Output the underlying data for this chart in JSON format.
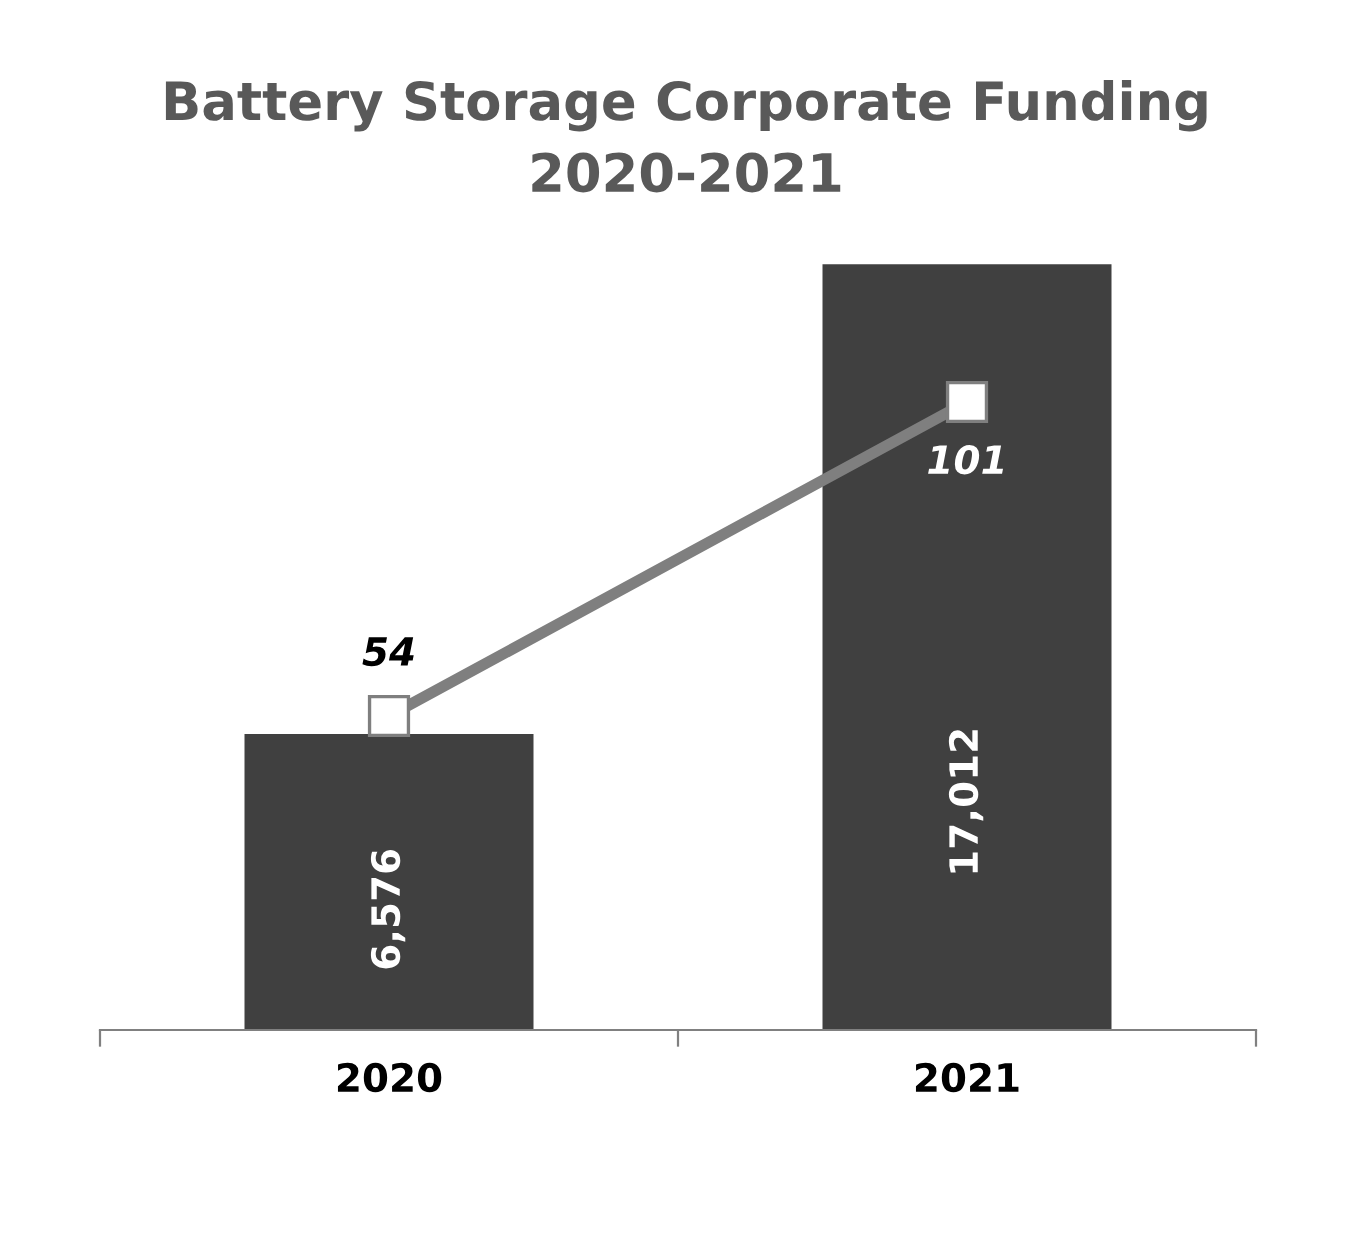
{
  "chart_data": {
    "type": "bar",
    "title": "Battery Storage Corporate Funding\n2020-2021",
    "categories": [
      "2020",
      "2021"
    ],
    "series": [
      {
        "color": "#404040",
        "values": [
          6576,
          17012
        ],
        "value_labels": [
          "6,576",
          "17,012"
        ]
      },
      {
        "type": "line",
        "axis": "y2",
        "color": "#7f7f7f",
        "values": [
          54,
          101
        ],
        "value_labels": [
          "54",
          "101"
        ]
      }
    ],
    "marker": "square",
    "line_style": "solid",
    "tick_labels": "x"
  }
}
